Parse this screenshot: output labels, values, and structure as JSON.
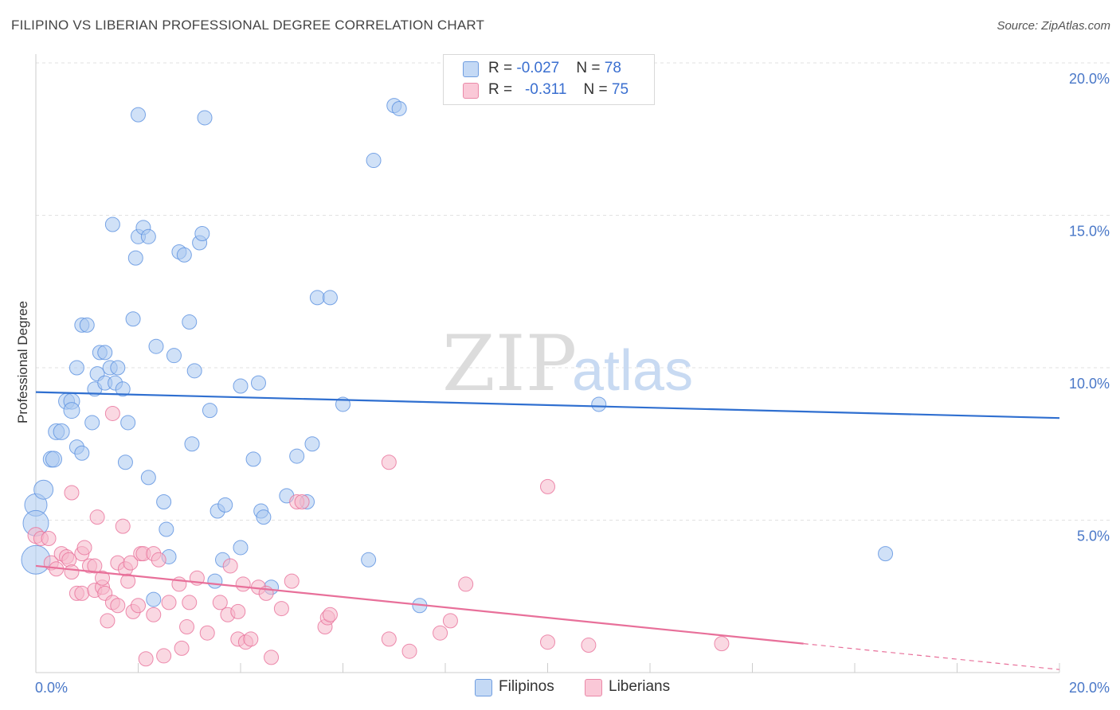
{
  "title": "FILIPINO VS LIBERIAN PROFESSIONAL DEGREE CORRELATION CHART",
  "source": "Source: ZipAtlas.com",
  "watermark": {
    "zip": "ZIP",
    "atlas": "atlas"
  },
  "legend": {
    "rows": [
      {
        "r_label": "R = ",
        "r_value": "-0.027",
        "n_label": "N = ",
        "n_value": "78",
        "color": "#aac8f0"
      },
      {
        "r_label": "R = ",
        "r_value": "-0.311",
        "n_label": "N = ",
        "n_value": "75",
        "color": "#f6b8cb"
      }
    ]
  },
  "bottom_legend": [
    {
      "label": "Filipinos",
      "color": "#aac8f0"
    },
    {
      "label": "Liberians",
      "color": "#f6b8cb"
    }
  ],
  "chart_data": {
    "type": "scatter",
    "title": "FILIPINO VS LIBERIAN PROFESSIONAL DEGREE CORRELATION CHART",
    "xlabel": "",
    "ylabel": "Professional Degree",
    "xlim": [
      0,
      20
    ],
    "ylim": [
      0,
      20
    ],
    "x_tick_labels": [
      "0.0%",
      "20.0%"
    ],
    "y_tick_labels": [
      "20.0%",
      "15.0%",
      "10.0%",
      "5.0%"
    ],
    "y_ticks": [
      20,
      15,
      10,
      5
    ],
    "grid": true,
    "series": [
      {
        "name": "Filipinos",
        "color": "#5a90e0",
        "fill": "#aac8f0",
        "r": -0.027,
        "n": 78,
        "trend": {
          "x0": 0,
          "y0": 9.2,
          "x1": 20,
          "y1": 8.35
        },
        "points": [
          [
            0.0,
            5.5,
            14
          ],
          [
            0.0,
            4.9,
            16
          ],
          [
            0.0,
            3.7,
            18
          ],
          [
            0.15,
            6.0,
            12
          ],
          [
            0.3,
            7.0,
            10
          ],
          [
            0.35,
            7.0,
            10
          ],
          [
            0.4,
            7.9,
            10
          ],
          [
            0.5,
            7.9,
            10
          ],
          [
            0.6,
            8.9,
            10
          ],
          [
            0.7,
            8.9,
            10
          ],
          [
            0.7,
            8.6,
            10
          ],
          [
            0.8,
            10.0,
            9
          ],
          [
            0.8,
            7.4,
            9
          ],
          [
            0.9,
            7.2,
            9
          ],
          [
            0.9,
            11.4,
            9
          ],
          [
            1.0,
            11.4,
            9
          ],
          [
            1.1,
            8.2,
            9
          ],
          [
            1.15,
            9.3,
            9
          ],
          [
            1.2,
            9.8,
            9
          ],
          [
            1.25,
            10.5,
            9
          ],
          [
            1.35,
            10.5,
            9
          ],
          [
            1.35,
            9.5,
            9
          ],
          [
            1.45,
            10.0,
            9
          ],
          [
            1.55,
            9.5,
            9
          ],
          [
            1.6,
            10.0,
            9
          ],
          [
            1.7,
            9.3,
            9
          ],
          [
            1.75,
            6.9,
            9
          ],
          [
            1.8,
            8.2,
            9
          ],
          [
            1.9,
            11.6,
            9
          ],
          [
            1.95,
            13.6,
            9
          ],
          [
            1.5,
            14.7,
            9
          ],
          [
            2.0,
            18.3,
            9
          ],
          [
            2.0,
            14.3,
            9
          ],
          [
            2.1,
            14.6,
            9
          ],
          [
            2.2,
            14.3,
            9
          ],
          [
            2.2,
            6.4,
            9
          ],
          [
            2.35,
            10.7,
            9
          ],
          [
            2.5,
            5.6,
            9
          ],
          [
            2.55,
            4.7,
            9
          ],
          [
            2.6,
            3.8,
            9
          ],
          [
            2.3,
            2.4,
            9
          ],
          [
            2.7,
            10.4,
            9
          ],
          [
            2.8,
            13.8,
            9
          ],
          [
            2.9,
            13.7,
            9
          ],
          [
            3.0,
            11.5,
            9
          ],
          [
            3.05,
            7.5,
            9
          ],
          [
            3.1,
            9.9,
            9
          ],
          [
            3.2,
            14.1,
            9
          ],
          [
            3.25,
            14.4,
            9
          ],
          [
            3.3,
            18.2,
            9
          ],
          [
            3.4,
            8.6,
            9
          ],
          [
            3.5,
            3.0,
            9
          ],
          [
            3.55,
            5.3,
            9
          ],
          [
            3.65,
            3.7,
            9
          ],
          [
            3.7,
            5.5,
            9
          ],
          [
            4.0,
            9.4,
            9
          ],
          [
            4.0,
            4.1,
            9
          ],
          [
            4.25,
            7.0,
            9
          ],
          [
            4.35,
            9.5,
            9
          ],
          [
            4.4,
            5.3,
            9
          ],
          [
            4.45,
            5.1,
            9
          ],
          [
            4.6,
            2.8,
            9
          ],
          [
            4.9,
            5.8,
            9
          ],
          [
            5.1,
            7.1,
            9
          ],
          [
            5.3,
            5.6,
            9
          ],
          [
            5.4,
            7.5,
            9
          ],
          [
            5.5,
            12.3,
            9
          ],
          [
            5.75,
            12.3,
            9
          ],
          [
            6.0,
            8.8,
            9
          ],
          [
            6.5,
            3.7,
            9
          ],
          [
            6.6,
            16.8,
            9
          ],
          [
            7.0,
            18.6,
            9
          ],
          [
            7.1,
            18.5,
            9
          ],
          [
            7.5,
            2.2,
            9
          ],
          [
            11.0,
            8.8,
            9
          ],
          [
            16.6,
            3.9,
            9
          ]
        ]
      },
      {
        "name": "Liberians",
        "color": "#e8709a",
        "fill": "#f6b8cb",
        "r": -0.311,
        "n": 75,
        "trend": {
          "x0": 0,
          "y0": 3.5,
          "x1": 15.0,
          "y1": 0.95
        },
        "trend_dashed": {
          "x0": 15.0,
          "y0": 0.95,
          "x1": 20,
          "y1": 0.1
        },
        "points": [
          [
            0.0,
            4.5,
            10
          ],
          [
            0.1,
            4.4,
            9
          ],
          [
            0.25,
            4.4,
            9
          ],
          [
            0.3,
            3.6,
            9
          ],
          [
            0.4,
            3.4,
            9
          ],
          [
            0.5,
            3.9,
            9
          ],
          [
            0.6,
            3.8,
            9
          ],
          [
            0.65,
            3.7,
            9
          ],
          [
            0.7,
            5.9,
            9
          ],
          [
            0.7,
            3.3,
            9
          ],
          [
            0.8,
            2.6,
            9
          ],
          [
            0.9,
            2.6,
            9
          ],
          [
            0.9,
            3.9,
            9
          ],
          [
            0.95,
            4.1,
            9
          ],
          [
            1.05,
            3.5,
            9
          ],
          [
            1.15,
            3.5,
            9
          ],
          [
            1.15,
            2.7,
            9
          ],
          [
            1.2,
            5.1,
            9
          ],
          [
            1.3,
            2.8,
            9
          ],
          [
            1.3,
            3.1,
            9
          ],
          [
            1.35,
            2.6,
            9
          ],
          [
            1.4,
            1.7,
            9
          ],
          [
            1.5,
            2.3,
            9
          ],
          [
            1.5,
            8.5,
            9
          ],
          [
            1.6,
            3.6,
            9
          ],
          [
            1.6,
            2.2,
            9
          ],
          [
            1.7,
            4.8,
            9
          ],
          [
            1.75,
            3.4,
            9
          ],
          [
            1.8,
            3.0,
            9
          ],
          [
            1.85,
            3.6,
            9
          ],
          [
            1.9,
            2.0,
            9
          ],
          [
            2.0,
            2.2,
            9
          ],
          [
            2.05,
            3.9,
            9
          ],
          [
            2.1,
            3.9,
            9
          ],
          [
            2.15,
            0.45,
            9
          ],
          [
            2.3,
            3.9,
            9
          ],
          [
            2.3,
            1.9,
            9
          ],
          [
            2.4,
            3.7,
            9
          ],
          [
            2.5,
            0.55,
            9
          ],
          [
            2.6,
            2.3,
            9
          ],
          [
            2.8,
            2.9,
            9
          ],
          [
            2.85,
            0.8,
            9
          ],
          [
            2.95,
            1.5,
            9
          ],
          [
            3.0,
            2.3,
            9
          ],
          [
            3.15,
            3.1,
            9
          ],
          [
            3.35,
            1.3,
            9
          ],
          [
            3.6,
            2.3,
            9
          ],
          [
            3.75,
            1.9,
            9
          ],
          [
            3.8,
            3.5,
            9
          ],
          [
            3.95,
            2.0,
            9
          ],
          [
            3.95,
            1.1,
            9
          ],
          [
            4.05,
            2.9,
            9
          ],
          [
            4.1,
            1.0,
            9
          ],
          [
            4.2,
            1.1,
            9
          ],
          [
            4.35,
            2.8,
            9
          ],
          [
            4.5,
            2.6,
            9
          ],
          [
            4.6,
            0.5,
            9
          ],
          [
            4.8,
            2.1,
            9
          ],
          [
            5.0,
            3.0,
            9
          ],
          [
            5.1,
            5.6,
            9
          ],
          [
            5.2,
            5.6,
            9
          ],
          [
            5.65,
            1.5,
            9
          ],
          [
            5.7,
            1.8,
            9
          ],
          [
            5.75,
            1.9,
            9
          ],
          [
            6.9,
            1.1,
            9
          ],
          [
            6.9,
            6.9,
            9
          ],
          [
            7.3,
            0.7,
            9
          ],
          [
            7.9,
            1.3,
            9
          ],
          [
            8.1,
            1.7,
            9
          ],
          [
            8.4,
            2.9,
            9
          ],
          [
            10.0,
            6.1,
            9
          ],
          [
            10.0,
            1.0,
            9
          ],
          [
            10.8,
            0.9,
            9
          ],
          [
            13.4,
            0.95,
            9
          ]
        ]
      }
    ]
  }
}
